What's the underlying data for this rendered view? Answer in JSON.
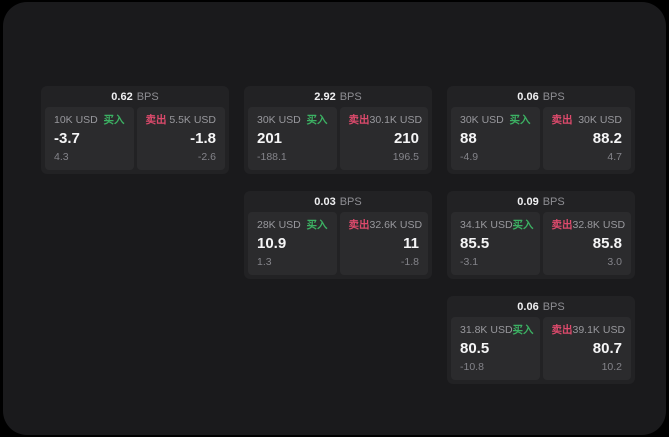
{
  "page": {
    "background": "#000000",
    "screen_background": "#1a1a1c"
  },
  "colors": {
    "card_bg": "#222224",
    "panel_bg": "#2b2b2d",
    "buy_green": "#3cb163",
    "sell_red": "#dd4a6c",
    "value_white": "#f5f5f6",
    "label_gray": "#98989d",
    "sub_gray": "#84848a"
  },
  "labels": {
    "bps_unit": "BPS",
    "buy": "买入",
    "sell": "卖出"
  },
  "cards": [
    {
      "bps": "0.62",
      "buy": {
        "amount": "10K USD",
        "value": "-3.7",
        "sub": "4.3"
      },
      "sell": {
        "amount": "5.5K USD",
        "value": "-1.8",
        "sub": "-2.6"
      }
    },
    {
      "bps": "2.92",
      "buy": {
        "amount": "30K USD",
        "value": "201",
        "sub": "-188.1"
      },
      "sell": {
        "amount": "30.1K USD",
        "value": "210",
        "sub": "196.5"
      }
    },
    {
      "bps": "0.06",
      "buy": {
        "amount": "30K USD",
        "value": "88",
        "sub": "-4.9"
      },
      "sell": {
        "amount": "30K USD",
        "value": "88.2",
        "sub": "4.7"
      }
    },
    {
      "bps": "0.03",
      "buy": {
        "amount": "28K USD",
        "value": "10.9",
        "sub": "1.3"
      },
      "sell": {
        "amount": "32.6K USD",
        "value": "11",
        "sub": "-1.8"
      }
    },
    {
      "bps": "0.09",
      "buy": {
        "amount": "34.1K USD",
        "value": "85.5",
        "sub": "-3.1"
      },
      "sell": {
        "amount": "32.8K USD",
        "value": "85.8",
        "sub": "3.0"
      }
    },
    {
      "bps": "0.06",
      "buy": {
        "amount": "31.8K USD",
        "value": "80.5",
        "sub": "-10.8"
      },
      "sell": {
        "amount": "39.1K USD",
        "value": "80.7",
        "sub": "10.2"
      }
    }
  ]
}
